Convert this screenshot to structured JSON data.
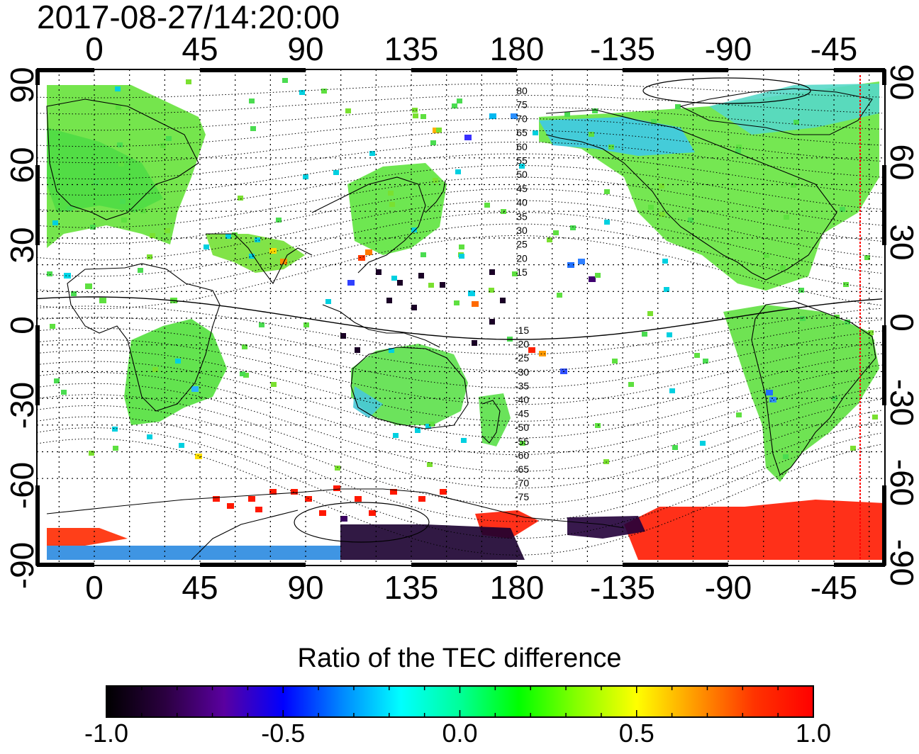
{
  "timestamp": "2017-08-27/14:20:00",
  "map": {
    "projection": "equirectangular",
    "central_longitude": 135,
    "longitude_ticks": [
      "0",
      "45",
      "90",
      "135",
      "180",
      "-135",
      "-90",
      "-45"
    ],
    "latitude_ticks_left": [
      "90",
      "60",
      "30",
      "0",
      "-30",
      "-60",
      "-90"
    ],
    "latitude_ticks_right": [
      "90",
      "60",
      "30",
      "0",
      "-30",
      "-60",
      "-90"
    ],
    "grid": "dotted, every 15 degrees",
    "terminator_line_color": "#ff0000",
    "magnetic_latitude_labels_north": [
      "80",
      "75",
      "70",
      "65",
      "60",
      "55",
      "50",
      "45",
      "40",
      "35",
      "30",
      "25",
      "20",
      "15"
    ],
    "magnetic_latitude_labels_south": [
      "-15",
      "-20",
      "-25",
      "-30",
      "-35",
      "-40",
      "-45",
      "-50",
      "-55",
      "-60",
      "-65",
      "-70",
      "-75"
    ]
  },
  "colorbar": {
    "title": "Ratio of the TEC difference",
    "min": -1.0,
    "max": 1.0,
    "tick_labels": [
      "-1.0",
      "-0.5",
      "0.0",
      "0.5",
      "1.0"
    ],
    "colors": [
      "#000000",
      "#2b0040",
      "#5a00a0",
      "#0000ff",
      "#0088ff",
      "#00ffff",
      "#00ff99",
      "#00ff00",
      "#88ff00",
      "#ffff00",
      "#ff9900",
      "#ff3300",
      "#ff0000"
    ]
  }
}
